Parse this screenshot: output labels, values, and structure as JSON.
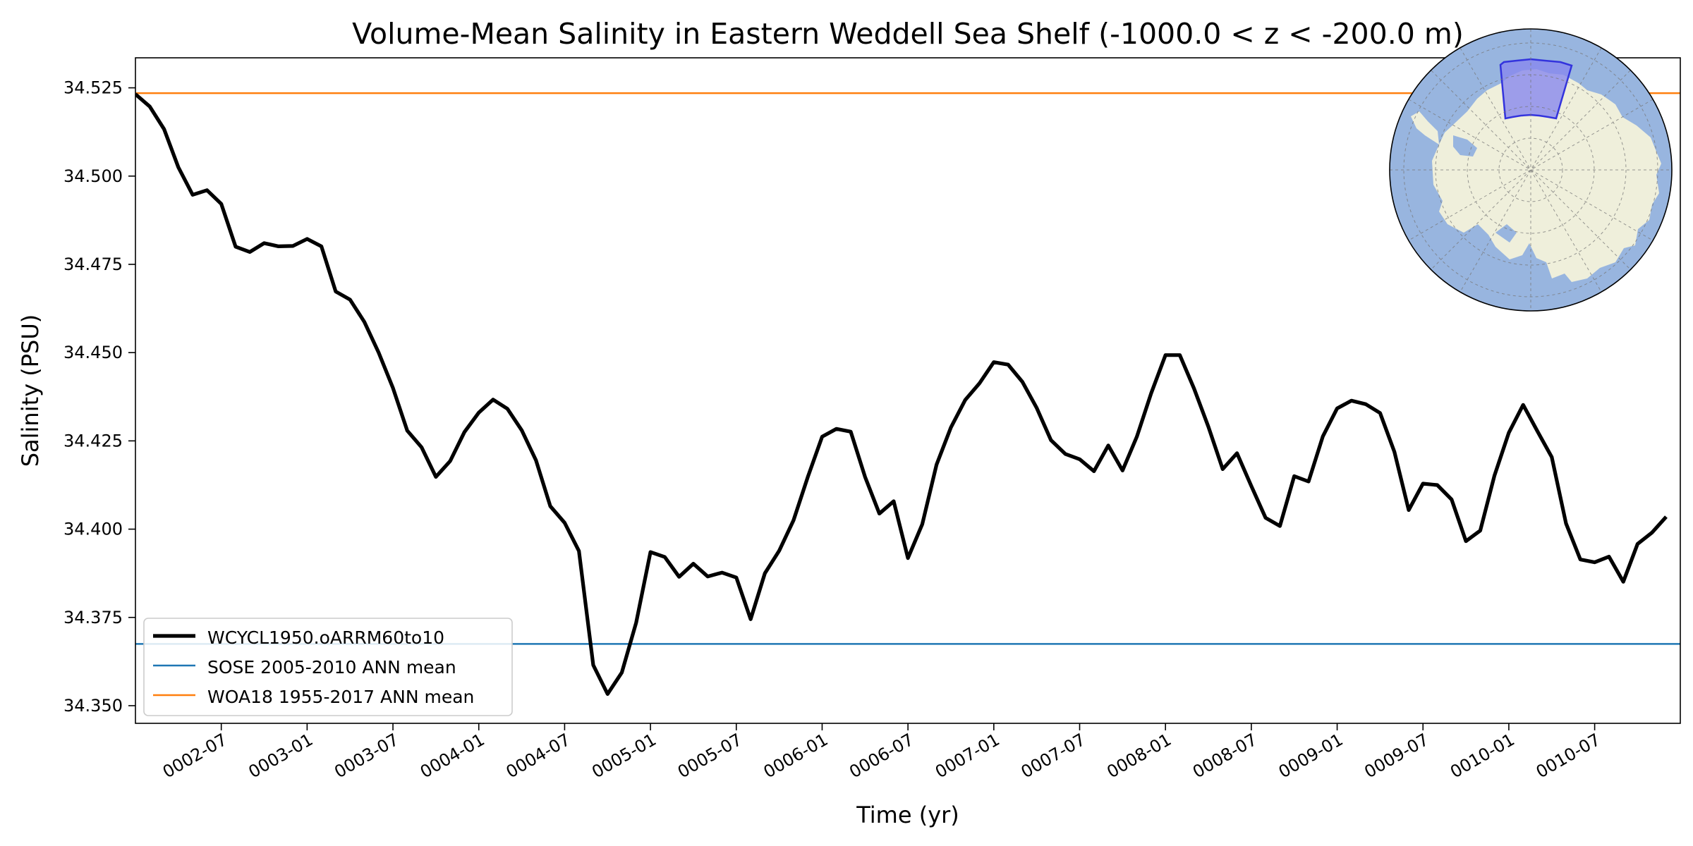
{
  "chart_data": {
    "type": "line",
    "title": "Volume-Mean Salinity in Eastern Weddell Sea Shelf (-1000.0 < z < -200.0 m)",
    "xlabel": "Time (yr)",
    "ylabel": "Salinity (PSU)",
    "x_ticks": [
      "0002-07",
      "0003-01",
      "0003-07",
      "0004-01",
      "0004-07",
      "0005-01",
      "0005-07",
      "0006-01",
      "0006-07",
      "0007-01",
      "0007-07",
      "0008-01",
      "0008-07",
      "0009-01",
      "0009-07",
      "0010-01",
      "0010-07"
    ],
    "y_ticks": [
      "34.350",
      "34.375",
      "34.400",
      "34.425",
      "34.450",
      "34.475",
      "34.500",
      "34.525"
    ],
    "xlim": [
      "0002-01-01",
      "0010-12-31"
    ],
    "ylim": [
      34.345,
      34.5335
    ],
    "grid": false,
    "legend_position": "lower-left",
    "series": [
      {
        "name": "WCYCL1950.oARRM60to10",
        "color": "#000000",
        "x_start": "0002-01",
        "x_step": "1 month",
        "values": [
          34.5232,
          34.5197,
          34.5133,
          34.5025,
          34.4947,
          34.496,
          34.4921,
          34.48,
          34.4785,
          34.481,
          34.4801,
          34.4802,
          34.4822,
          34.4801,
          34.4673,
          34.465,
          34.4587,
          34.45,
          34.44,
          34.4279,
          34.4232,
          34.4148,
          34.4193,
          34.4275,
          34.433,
          34.4367,
          34.4341,
          34.428,
          34.4195,
          34.4065,
          34.4018,
          34.3938,
          34.3615,
          34.3533,
          34.3594,
          34.3735,
          34.3935,
          34.3921,
          34.3865,
          34.3902,
          34.3866,
          34.3877,
          34.3863,
          34.3745,
          34.3875,
          34.3939,
          34.4025,
          34.4148,
          34.4262,
          34.4284,
          34.4276,
          34.4148,
          34.4044,
          34.4079,
          34.3918,
          34.4014,
          34.4183,
          34.4288,
          34.4366,
          34.4413,
          34.4473,
          34.4466,
          34.4417,
          34.4343,
          34.4252,
          34.4213,
          34.4198,
          34.4164,
          34.4237,
          34.4166,
          34.4262,
          34.4385,
          34.4493,
          34.4493,
          34.4398,
          34.429,
          34.417,
          34.4215,
          34.4122,
          34.4032,
          34.4009,
          34.415,
          34.4135,
          34.4263,
          34.4342,
          34.4364,
          34.4354,
          34.4329,
          34.4219,
          34.4054,
          34.4129,
          34.4125,
          34.4084,
          34.3966,
          34.3996,
          34.4152,
          34.4273,
          34.4352,
          34.4277,
          34.4204,
          34.4016,
          34.3914,
          34.3906,
          34.3922,
          34.3851,
          34.3958,
          34.399,
          34.4035
        ]
      },
      {
        "name": "SOSE 2005-2010 ANN mean",
        "color": "#1f77b4",
        "value": 34.3675
      },
      {
        "name": "WOA18 1955-2017 ANN mean",
        "color": "#ff7f0e",
        "value": 34.5235
      }
    ]
  },
  "inset_map": {
    "ocean_color": "#98b5df",
    "land_color": "#efefdb",
    "region_fill": "#8888ee",
    "region_edge": "#3333dd"
  }
}
